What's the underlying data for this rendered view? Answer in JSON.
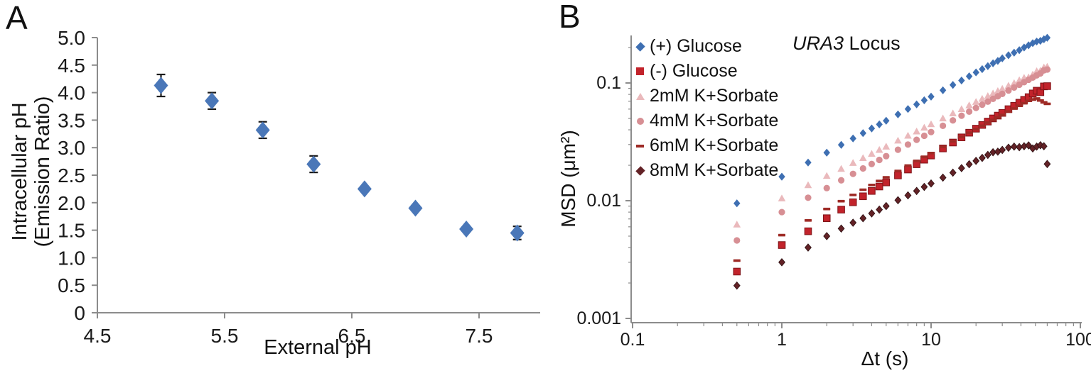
{
  "page": {
    "background": "#ffffff",
    "text_color": "#1a1a1a",
    "axis_color": "#8c8c8c"
  },
  "panelA": {
    "label": "A",
    "chart_data": {
      "type": "scatter",
      "title": "",
      "xlabel": "External pH",
      "ylabel": "Intracellular pH (Emission Ratio)",
      "ylabel_lines": [
        "Intracellular pH",
        "(Emission Ratio)"
      ],
      "xlim": [
        4.5,
        8.0
      ],
      "ylim": [
        0,
        5.0
      ],
      "xticks": [
        "4.5",
        "5.5",
        "6.5",
        "7.5"
      ],
      "xtick_values": [
        4.5,
        5.5,
        6.5,
        7.5
      ],
      "yticks": [
        "5.0",
        "4.5",
        "4.0",
        "3.5",
        "3.0",
        "2.5",
        "2.0",
        "1.5",
        "1.0",
        "0.5",
        "0"
      ],
      "ytick_values": [
        5.0,
        4.5,
        4.0,
        3.5,
        3.0,
        2.5,
        2.0,
        1.5,
        1.0,
        0.5,
        0
      ],
      "grid": false,
      "marker": {
        "shape": "diamond",
        "color": "#4A77B8"
      },
      "error_bar_color": "#1a1a1a",
      "points": [
        {
          "x": 5.0,
          "y": 4.13,
          "err": 0.2
        },
        {
          "x": 5.4,
          "y": 3.85,
          "err": 0.15
        },
        {
          "x": 5.8,
          "y": 3.32,
          "err": 0.15
        },
        {
          "x": 6.2,
          "y": 2.7,
          "err": 0.15
        },
        {
          "x": 6.6,
          "y": 2.25,
          "err": 0.04
        },
        {
          "x": 7.0,
          "y": 1.9,
          "err": 0.05
        },
        {
          "x": 7.4,
          "y": 1.52,
          "err": 0.04
        },
        {
          "x": 7.8,
          "y": 1.45,
          "err": 0.12
        }
      ]
    }
  },
  "panelB": {
    "label": "B",
    "title": {
      "italic": "URA3",
      "rest": " Locus"
    },
    "chart_data": {
      "type": "scatter",
      "xscale": "log",
      "yscale": "log",
      "xlabel": "Δt (s)",
      "ylabel": "MSD (μm²)",
      "xlim": [
        0.1,
        100
      ],
      "ylim": [
        0.001,
        0.27
      ],
      "xticks": [
        "0.1",
        "1",
        "10",
        "100"
      ],
      "xtick_values": [
        0.1,
        1,
        10,
        100
      ],
      "yticks": [
        "0.1",
        "0.01",
        "0.001"
      ],
      "ytick_values": [
        0.1,
        0.01,
        0.001
      ],
      "grid": false,
      "legend_position": "top-left-inside",
      "t": [
        0.5,
        1,
        1.5,
        2,
        2.5,
        3,
        3.5,
        4,
        4.5,
        5,
        6,
        7,
        8,
        9,
        10,
        12,
        14,
        16,
        18,
        20,
        22,
        24,
        26,
        28,
        30,
        33,
        36,
        39,
        42,
        45,
        48,
        51,
        54,
        57,
        60
      ],
      "series": [
        {
          "name": "(+) Glucose",
          "marker": "diamond",
          "color": "#3E6FB2",
          "values": [
            0.0095,
            0.016,
            0.0211,
            0.0256,
            0.0298,
            0.0338,
            0.0375,
            0.0411,
            0.0445,
            0.0478,
            0.0541,
            0.0601,
            0.0658,
            0.0713,
            0.0766,
            0.0867,
            0.0963,
            0.105,
            0.114,
            0.123,
            0.131,
            0.139,
            0.147,
            0.154,
            0.162,
            0.172,
            0.181,
            0.19,
            0.2,
            0.209,
            0.218,
            0.225,
            0.228,
            0.235,
            0.242
          ]
        },
        {
          "name": "(-) Glucose",
          "marker": "square",
          "color": "#C2232B",
          "values": [
            0.0025,
            0.0042,
            0.0055,
            0.0071,
            0.0084,
            0.0097,
            0.0109,
            0.0121,
            0.0132,
            0.0143,
            0.0164,
            0.0184,
            0.0204,
            0.0223,
            0.0242,
            0.0278,
            0.0312,
            0.0345,
            0.0378,
            0.0409,
            0.044,
            0.047,
            0.05,
            0.0528,
            0.0557,
            0.0599,
            0.064,
            0.068,
            0.0719,
            0.0758,
            0.0815,
            0.086,
            0.0835,
            0.0935,
            0.094
          ]
        },
        {
          "name": "2mM K+Sorbate",
          "marker": "triangle",
          "color": "#EAB9BC",
          "values": [
            0.0063,
            0.0105,
            0.0136,
            0.0163,
            0.0187,
            0.021,
            0.0231,
            0.0251,
            0.0271,
            0.0289,
            0.0325,
            0.0358,
            0.0389,
            0.0419,
            0.0448,
            0.0502,
            0.0554,
            0.0602,
            0.0648,
            0.0693,
            0.0736,
            0.0777,
            0.0818,
            0.0857,
            0.0895,
            0.0951,
            0.1,
            0.106,
            0.111,
            0.112,
            0.1185,
            0.1265,
            0.1275,
            0.136,
            0.138
          ]
        },
        {
          "name": "4mM K+Sorbate",
          "marker": "circle",
          "color": "#D78F94",
          "values": [
            0.0046,
            0.008,
            0.0106,
            0.0128,
            0.0149,
            0.0169,
            0.0188,
            0.0205,
            0.0222,
            0.0239,
            0.0271,
            0.03,
            0.0329,
            0.0356,
            0.0383,
            0.0433,
            0.0481,
            0.0527,
            0.0571,
            0.0614,
            0.0654,
            0.0694,
            0.0733,
            0.0771,
            0.0808,
            0.0863,
            0.0915,
            0.0966,
            0.1016,
            0.1065,
            0.1112,
            0.116,
            0.1205,
            0.128,
            0.13
          ]
        },
        {
          "name": "6mM K+Sorbate",
          "marker": "dash",
          "color": "#9E2B26",
          "values": [
            0.0031,
            0.0051,
            0.0068,
            0.0085,
            0.0099,
            0.0112,
            0.0124,
            0.0136,
            0.0147,
            0.0158,
            0.0179,
            0.0199,
            0.0218,
            0.0236,
            0.0254,
            0.0287,
            0.0319,
            0.0349,
            0.0378,
            0.0406,
            0.0433,
            0.046,
            0.0486,
            0.0511,
            0.0535,
            0.0572,
            0.0606,
            0.064,
            0.0673,
            0.0705,
            0.0722,
            0.0738,
            0.071,
            0.0685,
            0.0665
          ]
        },
        {
          "name": "8mM K+Sorbate",
          "marker": "diamond-small",
          "color": "#632226",
          "values": [
            0.0019,
            0.003,
            0.004,
            0.005,
            0.0058,
            0.0065,
            0.0071,
            0.0078,
            0.0084,
            0.009,
            0.0101,
            0.0111,
            0.0121,
            0.0131,
            0.014,
            0.0157,
            0.0173,
            0.0189,
            0.0204,
            0.0218,
            0.0231,
            0.0245,
            0.0258,
            0.0261,
            0.027,
            0.0282,
            0.0288,
            0.0285,
            0.029,
            0.0295,
            0.0278,
            0.0288,
            0.0296,
            0.029,
            0.0205
          ]
        }
      ]
    }
  }
}
